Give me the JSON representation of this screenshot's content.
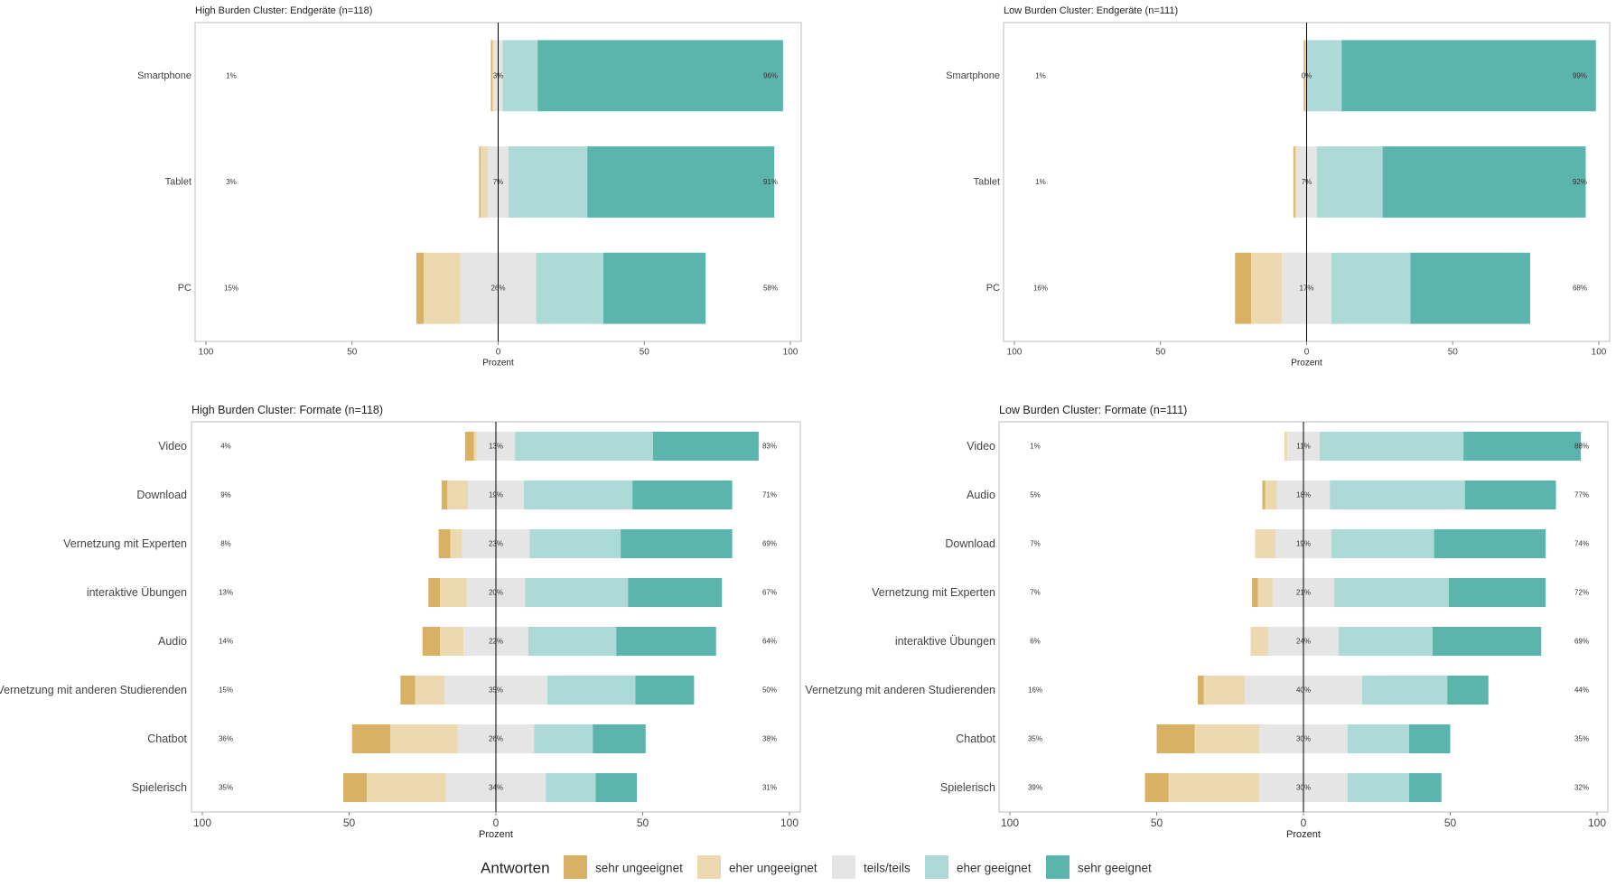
{
  "colors": {
    "sehr_ungeeignet": "#D8B165",
    "eher_ungeeignet": "#EDD9B0",
    "teils": "#E5E5E5",
    "eher_geeignet": "#ADD9D6",
    "sehr_geeignet": "#5BB5AC",
    "panel_border": "#BDBDBD",
    "zero_line": "#000000"
  },
  "legend": {
    "title": "Antworten",
    "items": [
      "sehr ungeeignet",
      "eher ungeeignet",
      "teils/teils",
      "eher geeignet",
      "sehr geeignet"
    ]
  },
  "chart_data": [
    {
      "type": "bar",
      "subtype": "diverging-stacked-likert",
      "title": "High Burden Cluster: Endgeräte (n=118)",
      "xlabel": "Prozent",
      "xticks": [
        "100",
        "50",
        "0",
        "50",
        "100"
      ],
      "xlim": [
        -100,
        100
      ],
      "categories": [
        "Smartphone",
        "Tablet",
        "PC"
      ],
      "series": [
        {
          "name": "sehr ungeeignet",
          "values": [
            0.5,
            0.5,
            2.5
          ]
        },
        {
          "name": "eher ungeeignet",
          "values": [
            0.5,
            2.5,
            12.5
          ]
        },
        {
          "name": "teils/teils",
          "values": [
            3,
            7,
            26
          ]
        },
        {
          "name": "eher geeignet",
          "values": [
            12,
            27,
            23
          ]
        },
        {
          "name": "sehr geeignet",
          "values": [
            84,
            64,
            35
          ]
        }
      ],
      "left_labels": [
        "1%",
        "3%",
        "15%"
      ],
      "center_labels": [
        "3%",
        "7%",
        "26%"
      ],
      "right_labels": [
        "96%",
        "91%",
        "58%"
      ]
    },
    {
      "type": "bar",
      "subtype": "diverging-stacked-likert",
      "title": "Low Burden Cluster: Endgeräte (n=111)",
      "xlabel": "Prozent",
      "xticks": [
        "100",
        "50",
        "0",
        "50",
        "100"
      ],
      "xlim": [
        -100,
        100
      ],
      "categories": [
        "Smartphone",
        "Tablet",
        "PC"
      ],
      "series": [
        {
          "name": "sehr ungeeignet",
          "values": [
            0.5,
            0.5,
            5.5
          ]
        },
        {
          "name": "eher ungeeignet",
          "values": [
            0.5,
            0.5,
            10.5
          ]
        },
        {
          "name": "teils/teils",
          "values": [
            0,
            7,
            17
          ]
        },
        {
          "name": "eher geeignet",
          "values": [
            12,
            22.5,
            27
          ]
        },
        {
          "name": "sehr geeignet",
          "values": [
            87,
            69.5,
            41
          ]
        }
      ],
      "left_labels": [
        "1%",
        "1%",
        "16%"
      ],
      "center_labels": [
        "0%",
        "7%",
        "17%"
      ],
      "right_labels": [
        "99%",
        "92%",
        "68%"
      ]
    },
    {
      "type": "bar",
      "subtype": "diverging-stacked-likert",
      "title": "High Burden Cluster: Formate (n=118)",
      "xlabel": "Prozent",
      "xticks": [
        "100",
        "50",
        "0",
        "50",
        "100"
      ],
      "xlim": [
        -100,
        100
      ],
      "categories": [
        "Video",
        "Download",
        "Vernetzung mit Experten",
        "interaktive Übungen",
        "Audio",
        "Vernetzung mit anderen Studierenden",
        "Chatbot",
        "Spielerisch"
      ],
      "series": [
        {
          "name": "sehr ungeeignet",
          "values": [
            3,
            2,
            4,
            4,
            6,
            5,
            13,
            8
          ]
        },
        {
          "name": "eher ungeeignet",
          "values": [
            1,
            7,
            4,
            9,
            8,
            10,
            23,
            27
          ]
        },
        {
          "name": "teils/teils",
          "values": [
            13,
            19,
            23,
            20,
            22,
            35,
            26,
            34
          ]
        },
        {
          "name": "eher geeignet",
          "values": [
            47,
            37,
            31,
            35,
            30,
            30,
            20,
            17
          ]
        },
        {
          "name": "sehr geeignet",
          "values": [
            36,
            34,
            38,
            32,
            34,
            20,
            18,
            14
          ]
        }
      ],
      "left_labels": [
        "4%",
        "9%",
        "8%",
        "13%",
        "14%",
        "15%",
        "36%",
        "35%"
      ],
      "center_labels": [
        "13%",
        "19%",
        "23%",
        "20%",
        "22%",
        "35%",
        "26%",
        "34%"
      ],
      "right_labels": [
        "83%",
        "71%",
        "69%",
        "67%",
        "64%",
        "50%",
        "38%",
        "31%"
      ]
    },
    {
      "type": "bar",
      "subtype": "diverging-stacked-likert",
      "title": "Low Burden Cluster: Formate (n=111)",
      "xlabel": "Prozent",
      "xticks": [
        "100",
        "50",
        "0",
        "50",
        "100"
      ],
      "xlim": [
        -100,
        100
      ],
      "categories": [
        "Video",
        "Audio",
        "Download",
        "Vernetzung mit Experten",
        "interaktive Übungen",
        "Vernetzung mit anderen Studierenden",
        "Chatbot",
        "Spielerisch"
      ],
      "series": [
        {
          "name": "sehr ungeeignet",
          "values": [
            0,
            1,
            0,
            2,
            0,
            2,
            13,
            8
          ]
        },
        {
          "name": "eher ungeeignet",
          "values": [
            1,
            4,
            7,
            5,
            6,
            14,
            22,
            31
          ]
        },
        {
          "name": "teils/teils",
          "values": [
            11,
            18,
            19,
            21,
            24,
            40,
            30,
            30
          ]
        },
        {
          "name": "eher geeignet",
          "values": [
            49,
            46,
            35,
            39,
            32,
            29,
            21,
            21
          ]
        },
        {
          "name": "sehr geeignet",
          "values": [
            40,
            31,
            38,
            33,
            37,
            14,
            14,
            11
          ]
        }
      ],
      "left_labels": [
        "1%",
        "5%",
        "7%",
        "7%",
        "6%",
        "16%",
        "35%",
        "39%"
      ],
      "center_labels": [
        "11%",
        "18%",
        "19%",
        "21%",
        "24%",
        "40%",
        "30%",
        "30%"
      ],
      "right_labels": [
        "88%",
        "77%",
        "74%",
        "72%",
        "69%",
        "44%",
        "35%",
        "32%"
      ]
    }
  ]
}
